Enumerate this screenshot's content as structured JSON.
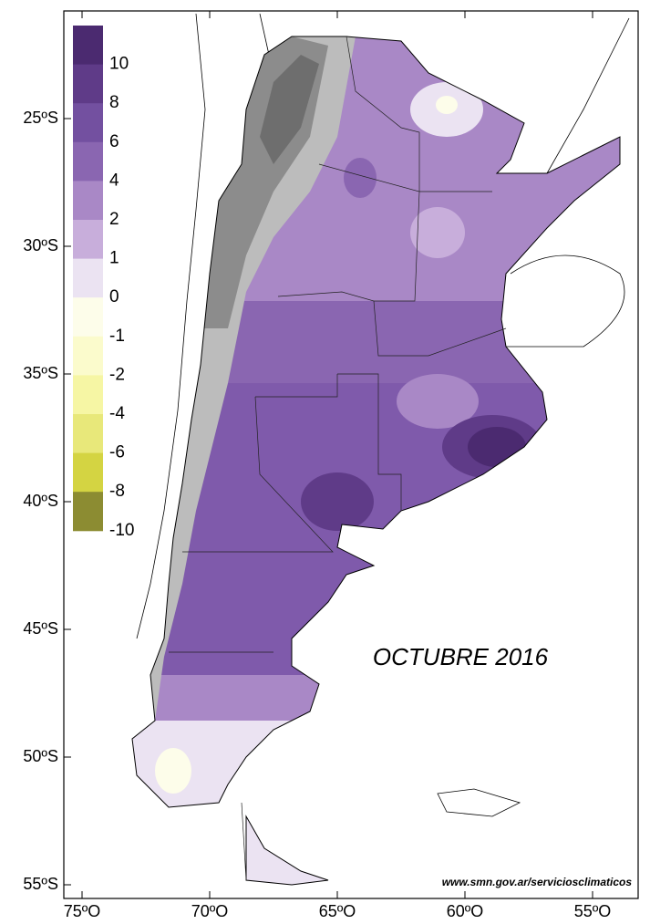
{
  "title": "OCTUBRE 2016",
  "source": "www.smn.gov.ar/serviciosclimaticos",
  "legend": {
    "labels": [
      "10",
      "8",
      "6",
      "4",
      "2",
      "1",
      "0",
      "-1",
      "-2",
      "-4",
      "-6",
      "-8",
      "-10"
    ],
    "colors": [
      "#4b2a70",
      "#5f3b88",
      "#7350a0",
      "#8a66b1",
      "#a988c6",
      "#c8aedb",
      "#ebe3f2",
      "#fdfdea",
      "#fbfbcc",
      "#f6f6a4",
      "#e8e87a",
      "#d4d442",
      "#8c8c32"
    ]
  },
  "axes": {
    "y": [
      "25ºS",
      "30ºS",
      "35ºS",
      "40ºS",
      "45ºS",
      "50ºS",
      "55ºS"
    ],
    "x": [
      "75ºO",
      "70ºO",
      "65ºO",
      "60ºO",
      "55ºO"
    ]
  }
}
